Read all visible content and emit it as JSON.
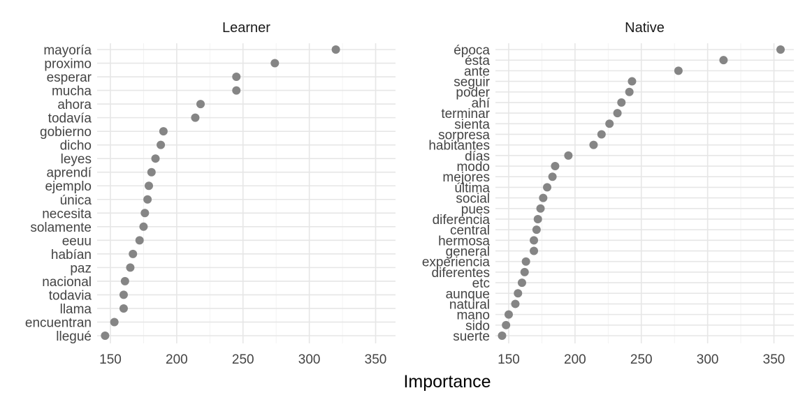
{
  "chart_data": {
    "type": "scatter",
    "xlabel": "Importance",
    "ylabel": "",
    "grid": true,
    "xlim": [
      140,
      365
    ],
    "xticks": [
      150,
      200,
      250,
      300,
      350
    ],
    "color": "#858585",
    "panels": [
      {
        "title": "Learner",
        "points": [
          {
            "label": "mayoría",
            "value": 320
          },
          {
            "label": "proximo",
            "value": 274
          },
          {
            "label": "esperar",
            "value": 245
          },
          {
            "label": "mucha",
            "value": 245
          },
          {
            "label": "ahora",
            "value": 218
          },
          {
            "label": "todavía",
            "value": 214
          },
          {
            "label": "gobierno",
            "value": 190
          },
          {
            "label": "dicho",
            "value": 188
          },
          {
            "label": "leyes",
            "value": 184
          },
          {
            "label": "aprendí",
            "value": 181
          },
          {
            "label": "ejemplo",
            "value": 179
          },
          {
            "label": "única",
            "value": 178
          },
          {
            "label": "necesita",
            "value": 176
          },
          {
            "label": "solamente",
            "value": 175
          },
          {
            "label": "eeuu",
            "value": 172
          },
          {
            "label": "habían",
            "value": 167
          },
          {
            "label": "paz",
            "value": 165
          },
          {
            "label": "nacional",
            "value": 161
          },
          {
            "label": "todavia",
            "value": 160
          },
          {
            "label": "llama",
            "value": 160
          },
          {
            "label": "encuentran",
            "value": 153
          },
          {
            "label": "llegué",
            "value": 146
          }
        ]
      },
      {
        "title": "Native",
        "points": [
          {
            "label": "época",
            "value": 355
          },
          {
            "label": "ésta",
            "value": 312
          },
          {
            "label": "ante",
            "value": 278
          },
          {
            "label": "seguir",
            "value": 243
          },
          {
            "label": "poder",
            "value": 241
          },
          {
            "label": "ahí",
            "value": 235
          },
          {
            "label": "terminar",
            "value": 232
          },
          {
            "label": "sienta",
            "value": 226
          },
          {
            "label": "sorpresa",
            "value": 220
          },
          {
            "label": "habitantes",
            "value": 214
          },
          {
            "label": "días",
            "value": 195
          },
          {
            "label": "modo",
            "value": 185
          },
          {
            "label": "mejores",
            "value": 183
          },
          {
            "label": "última",
            "value": 179
          },
          {
            "label": "social",
            "value": 176
          },
          {
            "label": "pues",
            "value": 174
          },
          {
            "label": "diferencia",
            "value": 172
          },
          {
            "label": "central",
            "value": 171
          },
          {
            "label": "hermosa",
            "value": 169
          },
          {
            "label": "general",
            "value": 169
          },
          {
            "label": "experiencia",
            "value": 163
          },
          {
            "label": "diferentes",
            "value": 162
          },
          {
            "label": "etc",
            "value": 160
          },
          {
            "label": "aunque",
            "value": 157
          },
          {
            "label": "natural",
            "value": 155
          },
          {
            "label": "mano",
            "value": 150
          },
          {
            "label": "sido",
            "value": 148
          },
          {
            "label": "suerte",
            "value": 145
          }
        ]
      }
    ]
  }
}
